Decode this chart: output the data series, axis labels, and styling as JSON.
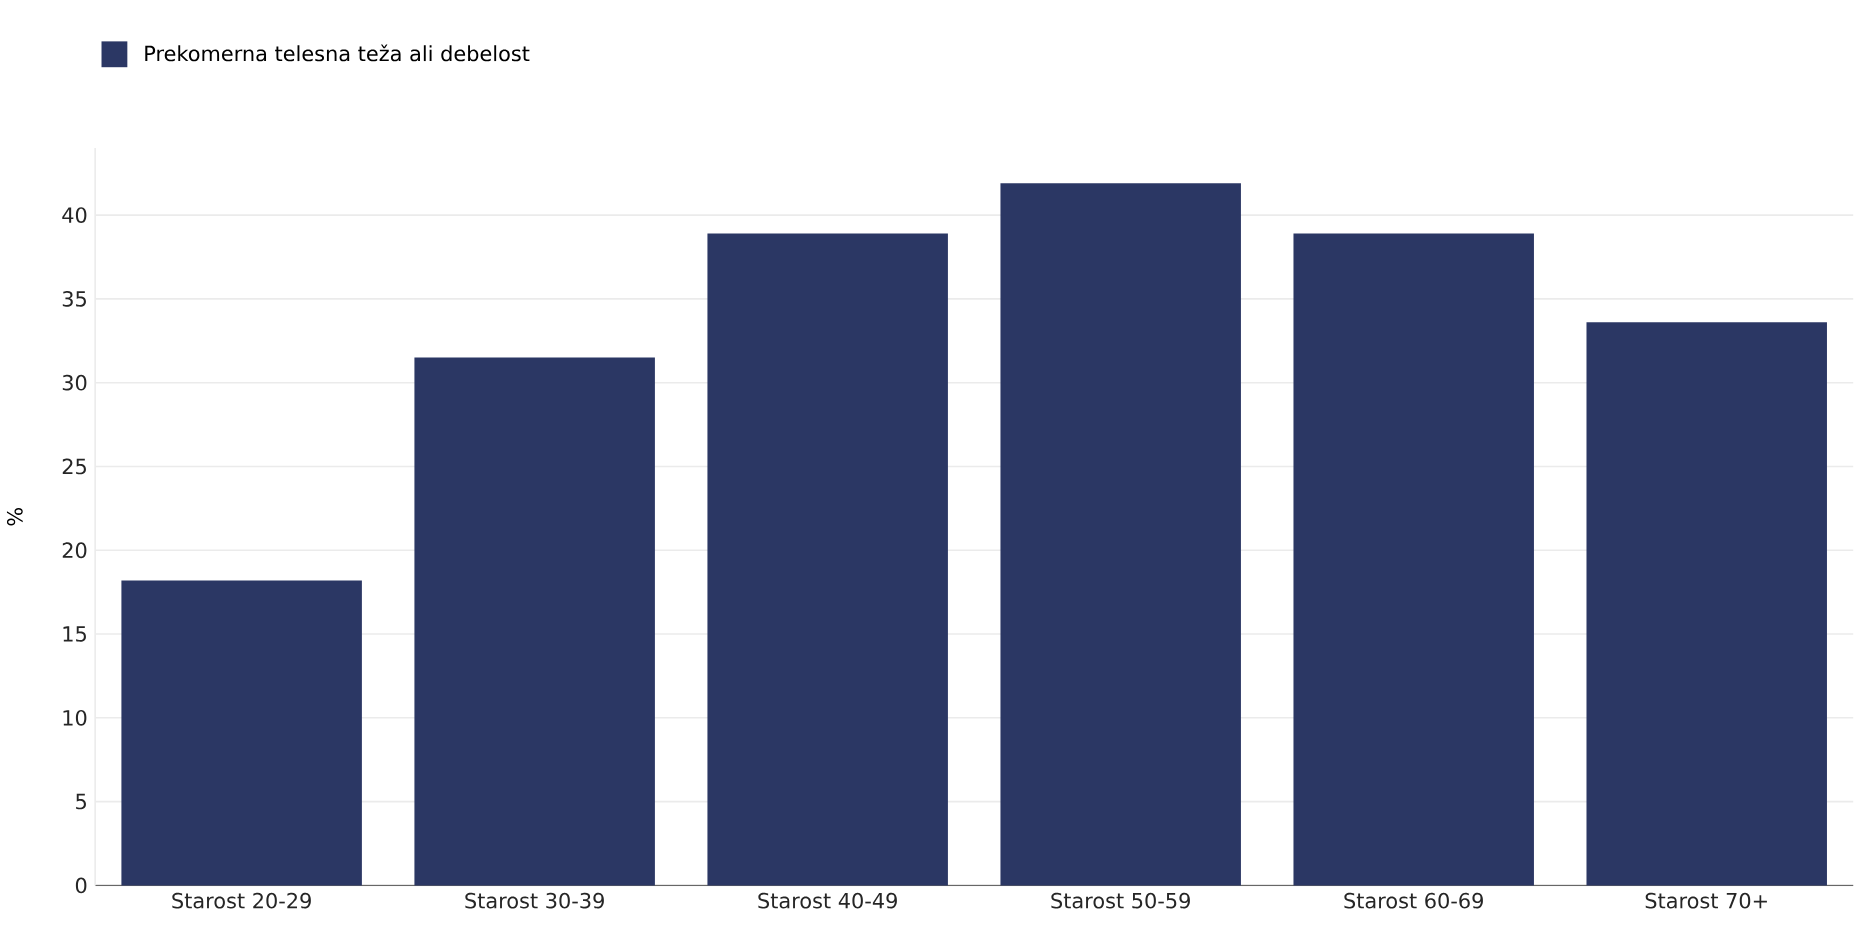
{
  "chart_data": {
    "type": "bar",
    "ylabel": "%",
    "categories": [
      "Starost 20-29",
      "Starost 30-39",
      "Starost 40-49",
      "Starost 50-59",
      "Starost 60-69",
      "Starost 70+"
    ],
    "series": [
      {
        "name": "Prekomerna telesna teža ali debelost",
        "color": "#2b3764",
        "values": [
          18.2,
          31.5,
          38.9,
          41.9,
          38.9,
          33.6
        ]
      }
    ],
    "ylim": [
      0,
      44
    ],
    "yticks": [
      0,
      5,
      10,
      15,
      20,
      25,
      30,
      35,
      40
    ],
    "grid": "y",
    "legend": "top left"
  }
}
